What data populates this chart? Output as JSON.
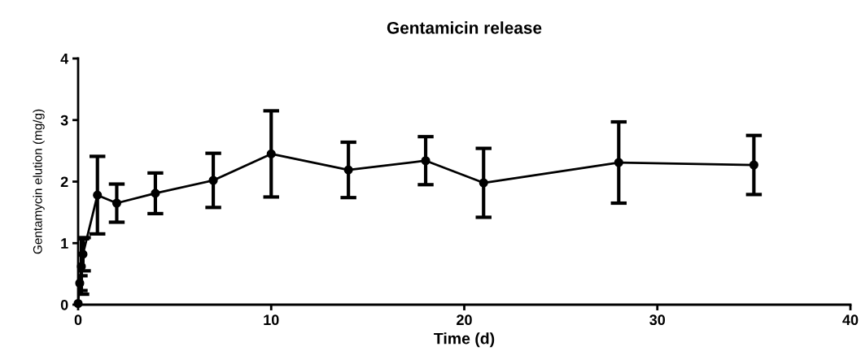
{
  "chart_data": {
    "type": "line",
    "title": "Gentamicin release",
    "xlabel": "Time (d)",
    "ylabel": "Gentamycin elution (mg/g)",
    "x": [
      0,
      0.083,
      0.167,
      0.25,
      1,
      2,
      4,
      7,
      10,
      14,
      18,
      21,
      28,
      35
    ],
    "series": [
      {
        "color": "#000000",
        "values": [
          0.02,
          0.35,
          0.62,
          0.82,
          1.78,
          1.65,
          1.81,
          2.02,
          2.45,
          2.19,
          2.34,
          1.98,
          2.31,
          2.27
        ],
        "errors": [
          null,
          0.12,
          0.45,
          0.27,
          0.63,
          0.31,
          0.33,
          0.44,
          0.7,
          0.45,
          0.39,
          0.56,
          0.66,
          0.48
        ]
      }
    ],
    "xlim": [
      0,
      40
    ],
    "xticks": [
      0,
      10,
      20,
      30,
      40
    ],
    "ylim": [
      0,
      4
    ],
    "yticks": [
      0,
      1,
      2,
      3,
      4
    ],
    "marker": "circle",
    "line_style": "solid",
    "grid": false,
    "legend": false
  }
}
